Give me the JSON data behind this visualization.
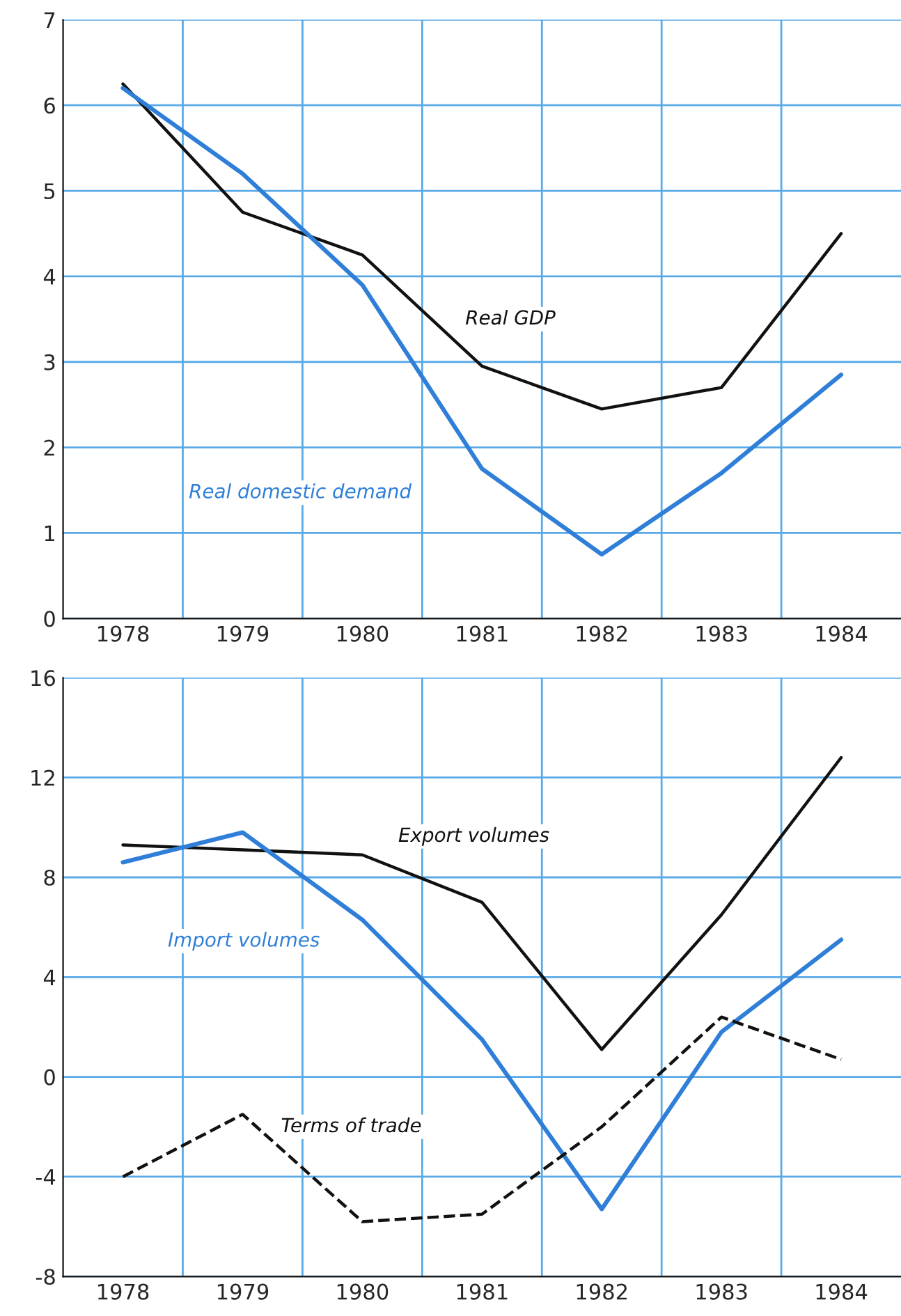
{
  "chart_data": [
    {
      "type": "line",
      "x": [
        1978,
        1979,
        1980,
        1981,
        1982,
        1983,
        1984
      ],
      "series": [
        {
          "name": "Real GDP",
          "color": "#111111",
          "values": [
            6.25,
            4.75,
            4.25,
            2.95,
            2.45,
            2.7,
            4.5
          ]
        },
        {
          "name": "Real domestic demand",
          "color": "#2f7fd8",
          "values": [
            6.2,
            5.2,
            3.9,
            1.75,
            0.75,
            1.7,
            2.85
          ]
        }
      ],
      "xlim": [
        1977.5,
        1984.5
      ],
      "ylim": [
        0,
        7
      ],
      "yticks": [
        0,
        1,
        2,
        3,
        4,
        5,
        6,
        7
      ],
      "xticks": [
        1978,
        1979,
        1980,
        1981,
        1982,
        1983,
        1984,
        {
          "value": 1978.5,
          "label": null
        },
        {
          "value": 1979.5,
          "label": null
        },
        {
          "value": 1980.5,
          "label": null
        },
        {
          "value": 1981.5,
          "label": null
        },
        {
          "value": 1982.5,
          "label": null
        },
        {
          "value": 1983.5,
          "label": null
        }
      ],
      "grid": true,
      "legend": false,
      "line_style": "solid"
    },
    {
      "type": "line",
      "x": [
        1978,
        1979,
        1980,
        1981,
        1982,
        1983,
        1984
      ],
      "series": [
        {
          "name": "Export volumes",
          "color": "#111111",
          "values": [
            9.3,
            9.1,
            8.9,
            7.0,
            1.1,
            6.5,
            12.8
          ]
        },
        {
          "name": "Import volumes",
          "color": "#2f7fd8",
          "values": [
            8.6,
            9.8,
            6.3,
            1.5,
            -5.3,
            1.8,
            5.5
          ]
        },
        {
          "name": "Terms of trade",
          "color": "#111111",
          "line_style": "dashed",
          "values": [
            -4.0,
            -1.5,
            -5.8,
            -5.5,
            -2.0,
            2.4,
            0.7
          ]
        }
      ],
      "xlim": [
        1977.5,
        1984.5
      ],
      "ylim": [
        -8,
        16
      ],
      "yticks": [
        -8,
        -4,
        0,
        4,
        8,
        12,
        16
      ],
      "xticks": [
        1978,
        1979,
        1980,
        1981,
        1982,
        1983,
        1984,
        {
          "value": 1978.5,
          "label": null
        },
        {
          "value": 1979.5,
          "label": null
        },
        {
          "value": 1980.5,
          "label": null
        },
        {
          "value": 1981.5,
          "label": null
        },
        {
          "value": 1982.5,
          "label": null
        },
        {
          "value": 1983.5,
          "label": null
        }
      ],
      "grid": true,
      "legend": false,
      "line_style": "solid"
    }
  ]
}
